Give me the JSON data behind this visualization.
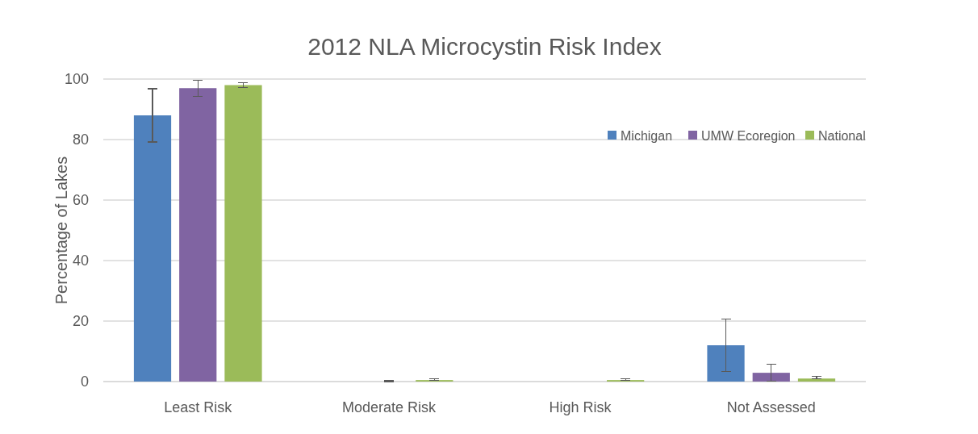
{
  "chart_data": {
    "type": "bar",
    "title": "2012 NLA Microcystin Risk Index",
    "ylabel": "Percentage of Lakes",
    "categories": [
      "Least Risk",
      "Moderate Risk",
      "High Risk",
      "Not Assessed"
    ],
    "series": [
      {
        "name": "Michigan",
        "color": "#4f81bd",
        "values": [
          88,
          0,
          0,
          12
        ],
        "errors": [
          8.8,
          null,
          null,
          8.7
        ]
      },
      {
        "name": "UMW Ecoregion",
        "color": "#8064a2",
        "values": [
          97,
          0,
          0,
          2.9
        ],
        "errors": [
          2.7,
          [
            0,
            0.4
          ],
          null,
          2.8
        ]
      },
      {
        "name": "National",
        "color": "#9bbb59",
        "values": [
          98,
          0.5,
          0.5,
          1
        ],
        "errors": [
          0.8,
          [
            0.5,
            0.9
          ],
          [
            0.5,
            0.9
          ],
          [
            1,
            1.7
          ]
        ]
      }
    ],
    "ylim": [
      0,
      100
    ],
    "yticks": [
      0,
      20,
      40,
      60,
      80,
      100
    ],
    "grid": "y",
    "legend": "top right"
  }
}
